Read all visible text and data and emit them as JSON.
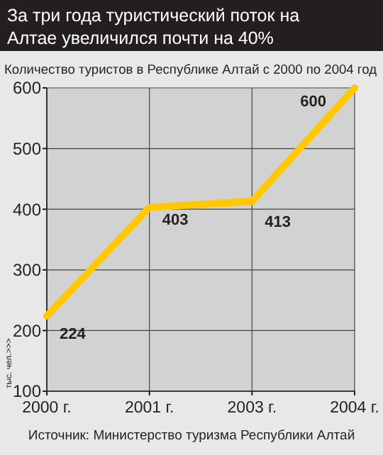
{
  "chart_data": {
    "type": "line",
    "title": "За три года туристический поток на Алтае увеличился почти на 40%",
    "subtitle": "Количество туристов в Республике Алтай с 2000 по 2004 год",
    "ylabel": "тыс. чел.>>>",
    "annotations": [
      "Источник: Министерство туризма Республики Алтай"
    ],
    "categories": [
      "2000 г.",
      "2001 г.",
      "2003 г.",
      "2004 г."
    ],
    "series": [
      {
        "color": "#ffc800",
        "values": [
          224,
          403,
          413,
          600
        ]
      }
    ],
    "ylim": [
      100,
      600
    ],
    "yticks": [
      100,
      200,
      300,
      400,
      500,
      600
    ],
    "grid": true,
    "data_labels": true,
    "marker": "none",
    "line_style": "solid"
  }
}
